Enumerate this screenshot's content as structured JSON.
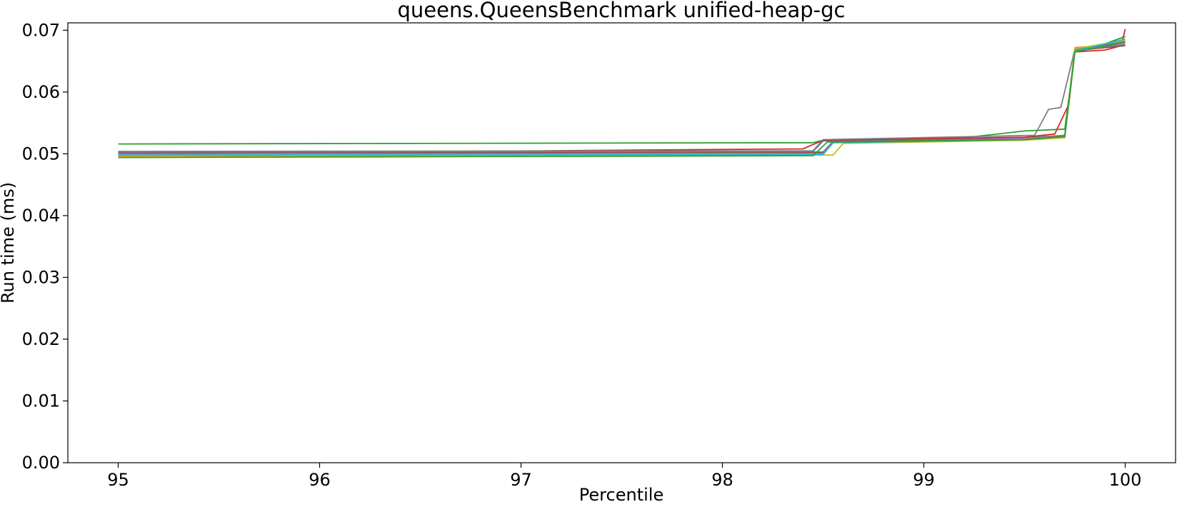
{
  "chart_data": {
    "type": "line",
    "title": "queens.QueensBenchmark unified-heap-gc",
    "xlabel": "Percentile",
    "ylabel": "Run time (ms)",
    "xlim": [
      94.75,
      100.25
    ],
    "ylim": [
      0.0,
      0.0712
    ],
    "xticks": [
      95,
      96,
      97,
      98,
      99,
      100
    ],
    "xtick_labels": [
      "95",
      "96",
      "97",
      "98",
      "99",
      "100"
    ],
    "yticks": [
      0.0,
      0.01,
      0.02,
      0.03,
      0.04,
      0.05,
      0.06,
      0.07
    ],
    "ytick_labels": [
      "0.00",
      "0.01",
      "0.02",
      "0.03",
      "0.04",
      "0.05",
      "0.06",
      "0.07"
    ],
    "grid": false,
    "legend": "none",
    "colors": [
      "#1f77b4",
      "#ff7f0e",
      "#2ca02c",
      "#d62728",
      "#9467bd",
      "#8c564b",
      "#e377c2",
      "#7f7f7f",
      "#bcbd22",
      "#17becf"
    ],
    "series": [
      {
        "color": "#2ca02c",
        "x": [
          95,
          98.45,
          98.5,
          99.2,
          99.5,
          99.7,
          99.75,
          99.9,
          100
        ],
        "y": [
          0.0516,
          0.0518,
          0.0522,
          0.0526,
          0.0537,
          0.054,
          0.0665,
          0.0678,
          0.069
        ]
      },
      {
        "color": "#1f77b4",
        "x": [
          95,
          98.45,
          98.5,
          99.5,
          99.7,
          99.75,
          100
        ],
        "y": [
          0.0503,
          0.0504,
          0.0521,
          0.0526,
          0.053,
          0.0668,
          0.068
        ]
      },
      {
        "color": "#ff7f0e",
        "x": [
          95,
          98.5,
          98.55,
          99.5,
          99.7,
          99.75,
          100
        ],
        "y": [
          0.0497,
          0.0499,
          0.0519,
          0.0525,
          0.053,
          0.0672,
          0.0678
        ]
      },
      {
        "color": "#d62728",
        "x": [
          95,
          98.4,
          98.5,
          99.5,
          99.65,
          99.72,
          99.75,
          99.9,
          99.98,
          100
        ],
        "y": [
          0.05,
          0.0508,
          0.0522,
          0.0527,
          0.0532,
          0.058,
          0.0665,
          0.0668,
          0.0675,
          0.0702
        ]
      },
      {
        "color": "#9467bd",
        "x": [
          95,
          98.5,
          98.55,
          99.5,
          99.7,
          99.75,
          100
        ],
        "y": [
          0.0502,
          0.0503,
          0.052,
          0.0525,
          0.0529,
          0.0668,
          0.0682
        ]
      },
      {
        "color": "#8c564b",
        "x": [
          95,
          98.5,
          98.55,
          99.5,
          99.7,
          99.75,
          100
        ],
        "y": [
          0.0501,
          0.0502,
          0.0519,
          0.0524,
          0.0529,
          0.0667,
          0.0675
        ]
      },
      {
        "color": "#e377c2",
        "x": [
          95,
          98.5,
          98.55,
          99.5,
          99.7,
          99.75,
          100
        ],
        "y": [
          0.0499,
          0.05,
          0.0518,
          0.0524,
          0.0528,
          0.0666,
          0.0679
        ]
      },
      {
        "color": "#7f7f7f",
        "x": [
          95,
          98.45,
          98.5,
          99.55,
          99.62,
          99.68,
          99.75,
          100
        ],
        "y": [
          0.0504,
          0.0505,
          0.0523,
          0.053,
          0.0572,
          0.0575,
          0.0669,
          0.0677
        ]
      },
      {
        "color": "#bcbd22",
        "x": [
          95,
          98.55,
          98.6,
          99.5,
          99.7,
          99.75,
          100
        ],
        "y": [
          0.0495,
          0.0498,
          0.0517,
          0.0522,
          0.0526,
          0.067,
          0.0684
        ]
      },
      {
        "color": "#17becf",
        "x": [
          95,
          98.5,
          98.55,
          99.5,
          99.7,
          99.75,
          100
        ],
        "y": [
          0.0498,
          0.0499,
          0.0518,
          0.0523,
          0.0528,
          0.0666,
          0.0686
        ]
      },
      {
        "color": "#2ca02c",
        "x": [
          95,
          98.45,
          98.52,
          99.5,
          99.7,
          99.75,
          100
        ],
        "y": [
          0.0494,
          0.0497,
          0.0519,
          0.0523,
          0.0528,
          0.0665,
          0.0681
        ]
      }
    ]
  }
}
